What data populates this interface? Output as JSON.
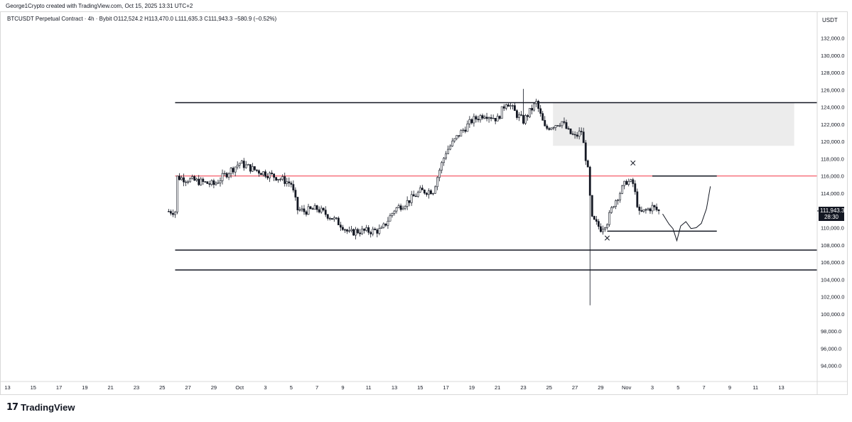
{
  "header": {
    "credit": "George1Crypto created with TradingView.com, Oct 15, 2025 13:31 UTC+2",
    "symbol_line": "BTCUSDT Perpetual Contract · 4h · Bybit   O112,524.2  H113,470.0  L111,635.3  C111,943.3  −580.9 (−0.52%)"
  },
  "axis": {
    "currency": "USDT",
    "current_price": "111,943.3",
    "countdown": "28:30"
  },
  "footer": {
    "logo_mark": "17",
    "logo_text": "TradingView"
  },
  "colors": {
    "candle": "#131722",
    "level_line": "#131722",
    "red_line": "#f23645",
    "zone_fill": "#ececec"
  },
  "chart_data": {
    "type": "candlestick",
    "timeframe": "4h",
    "ylim": [
      92000,
      134000
    ],
    "y_ticks": [
      "94,000.0",
      "96,000.0",
      "98,000.0",
      "100,000.0",
      "102,000.0",
      "104,000.0",
      "106,000.0",
      "108,000.0",
      "110,000.0",
      "112,000.0",
      "114,000.0",
      "116,000.0",
      "118,000.0",
      "120,000.0",
      "122,000.0",
      "124,000.0",
      "126,000.0",
      "128,000.0",
      "130,000.0",
      "132,000.0"
    ],
    "x_ticks": [
      "13",
      "15",
      "17",
      "19",
      "21",
      "23",
      "25",
      "27",
      "29",
      "Oct",
      "3",
      "5",
      "7",
      "9",
      "11",
      "13",
      "15",
      "17",
      "19",
      "21",
      "23",
      "25",
      "27",
      "29",
      "Nov",
      "3",
      "5",
      "7",
      "9",
      "11",
      "13"
    ],
    "price_path": [
      [
        13,
        115900
      ],
      [
        15,
        115300
      ],
      [
        16,
        115000
      ],
      [
        17,
        116300
      ],
      [
        18,
        117500
      ],
      [
        19,
        116800
      ],
      [
        20,
        116300
      ],
      [
        21,
        115800
      ],
      [
        22,
        115100
      ],
      [
        22.5,
        112100
      ],
      [
        23,
        111900
      ],
      [
        24,
        112200
      ],
      [
        25,
        111300
      ],
      [
        26,
        110200
      ],
      [
        26.5,
        109300
      ],
      [
        27,
        109600
      ],
      [
        28,
        109600
      ],
      [
        29,
        109700
      ],
      [
        30,
        112100
      ],
      [
        31,
        113000
      ],
      [
        32,
        114200
      ],
      [
        33,
        114300
      ],
      [
        33.5,
        116700
      ],
      [
        34,
        118800
      ],
      [
        35,
        120800
      ],
      [
        36,
        122400
      ],
      [
        37,
        123200
      ],
      [
        38,
        122600
      ],
      [
        38.7,
        124700
      ],
      [
        39.5,
        123100
      ],
      [
        40,
        122400
      ],
      [
        41,
        124500
      ],
      [
        41.7,
        121400
      ],
      [
        42,
        121700
      ],
      [
        43,
        122300
      ],
      [
        43.5,
        121100
      ],
      [
        44,
        120500
      ],
      [
        44.5,
        121200
      ],
      [
        45,
        116600
      ],
      [
        45.3,
        111000
      ],
      [
        46,
        109900
      ],
      [
        46.5,
        110700
      ],
      [
        47,
        112800
      ],
      [
        48,
        115400
      ],
      [
        48.5,
        115100
      ],
      [
        49,
        111600
      ],
      [
        50,
        112400
      ],
      [
        50.5,
        111900
      ]
    ],
    "extreme_wicks": [
      {
        "x": 40,
        "high": 126100
      },
      {
        "x": 45.2,
        "low": 101000
      }
    ],
    "horizontal_levels": [
      {
        "price": 124500,
        "style": "black",
        "from_x": 13,
        "to_x": 70
      },
      {
        "price": 116000,
        "style": "red",
        "from_x": 13,
        "to_x": 70
      },
      {
        "price": 116000,
        "style": "black",
        "from_x": 50,
        "to_x": 55
      },
      {
        "price": 109600,
        "style": "black",
        "from_x": 46.5,
        "to_x": 55
      },
      {
        "price": 107400,
        "style": "black",
        "from_x": 13,
        "to_x": 70
      },
      {
        "price": 105100,
        "style": "black",
        "from_x": 13,
        "to_x": 70
      }
    ],
    "zone": {
      "x_from": 42.3,
      "x_to": 61,
      "y_from": 119500,
      "y_to": 124500
    },
    "x_markers": [
      {
        "x": 48.5,
        "price": 117500
      },
      {
        "x": 46.5,
        "price": 108800
      }
    ],
    "projection_path": [
      [
        50.8,
        111600
      ],
      [
        51.3,
        110400
      ],
      [
        51.6,
        109900
      ],
      [
        51.9,
        108500
      ],
      [
        52.2,
        110200
      ],
      [
        52.6,
        110700
      ],
      [
        53,
        109900
      ],
      [
        53.4,
        110000
      ],
      [
        53.8,
        110500
      ],
      [
        54.2,
        112200
      ],
      [
        54.5,
        114800
      ]
    ]
  }
}
